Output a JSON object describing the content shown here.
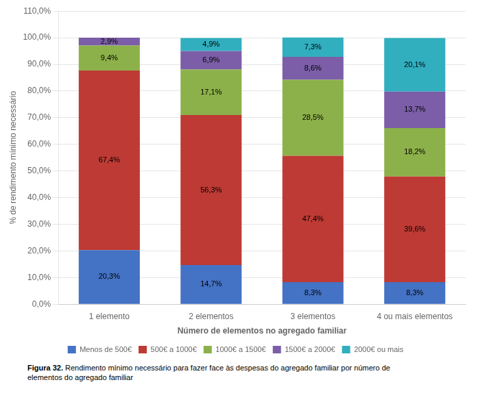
{
  "chart_data": {
    "type": "bar",
    "stacked": true,
    "categories": [
      "1 elemento",
      "2 elementos",
      "3 elementos",
      "4 ou mais elementos"
    ],
    "series": [
      {
        "name": "Menos de 500€",
        "color": "#4472C4",
        "values": [
          20.3,
          14.7,
          8.3,
          8.3
        ],
        "value_labels": [
          "20,3%",
          "14,7%",
          "8,3%",
          "8,3%"
        ]
      },
      {
        "name": "500€ a 1000€",
        "color": "#BE3A34",
        "values": [
          67.4,
          56.3,
          47.4,
          39.6
        ],
        "value_labels": [
          "67,4%",
          "56,3%",
          "47,4%",
          "39,6%"
        ]
      },
      {
        "name": "1000€ a 1500€",
        "color": "#8DB14A",
        "values": [
          9.4,
          17.1,
          28.5,
          18.2
        ],
        "value_labels": [
          "9,4%",
          "17,1%",
          "28,5%",
          "18,2%"
        ]
      },
      {
        "name": "1500€ a 2000€",
        "color": "#7B5EA7",
        "values": [
          2.9,
          6.9,
          8.6,
          13.7
        ],
        "value_labels": [
          "2,9%",
          "6,9%",
          "8,6%",
          "13,7%"
        ]
      },
      {
        "name": "2000€ ou mais",
        "color": "#31AFBF",
        "values": [
          0.0,
          4.9,
          7.3,
          20.1
        ],
        "value_labels": [
          null,
          "4,9%",
          "7,3%",
          "20,1%"
        ]
      }
    ],
    "data_labels": true,
    "ylabel": "% de rendimento mínimo necessário",
    "xlabel": "Número de elementos no agregado familiar",
    "ylim": [
      0,
      110
    ],
    "yticks": [
      {
        "value": 0,
        "label": "0,0%"
      },
      {
        "value": 10,
        "label": "10,0%"
      },
      {
        "value": 20,
        "label": "20,0%"
      },
      {
        "value": 30,
        "label": "30,0%"
      },
      {
        "value": 40,
        "label": "40,0%"
      },
      {
        "value": 50,
        "label": "50,0%"
      },
      {
        "value": 60,
        "label": "60,0%"
      },
      {
        "value": 70,
        "label": "70,0%"
      },
      {
        "value": 80,
        "label": "80,0%"
      },
      {
        "value": 90,
        "label": "90,0%"
      },
      {
        "value": 100,
        "label": "100,0%"
      },
      {
        "value": 110,
        "label": "110,0%"
      }
    ],
    "grid": true,
    "legend": "bottom",
    "annotations": [
      "Figura 32.",
      "Rendimento mínimo necessário para fazer face às despesas do agregado familiar por número de\nelementos do agregado familiar"
    ]
  }
}
